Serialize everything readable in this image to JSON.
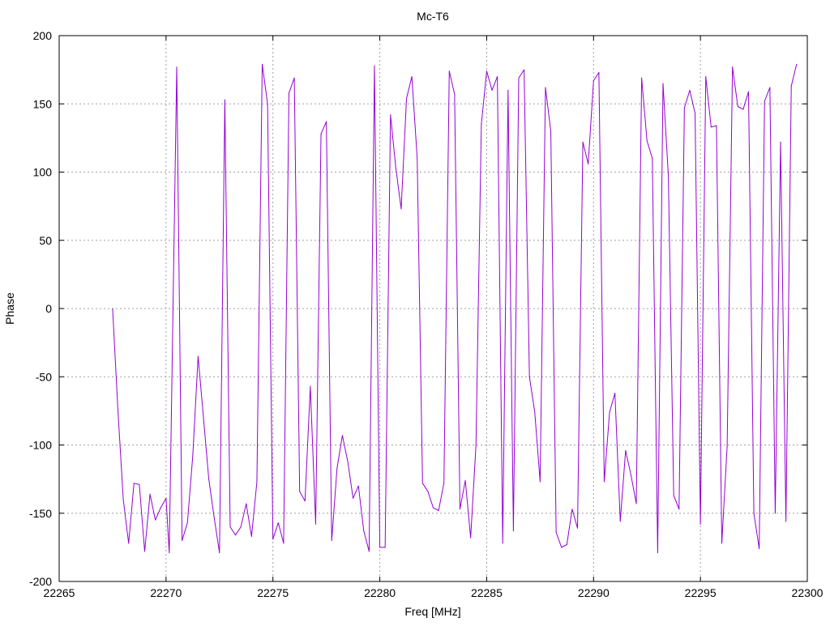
{
  "chart_data": {
    "type": "line",
    "title": "Mc-T6",
    "xlabel": "Freq [MHz]",
    "ylabel": "Phase",
    "xlim": [
      22265,
      22300
    ],
    "ylim": [
      -200,
      200
    ],
    "xticks": [
      22265,
      22270,
      22275,
      22280,
      22285,
      22290,
      22295,
      22300
    ],
    "yticks": [
      -200,
      -150,
      -100,
      -50,
      0,
      50,
      100,
      150,
      200
    ],
    "grid": true,
    "line_color": "#9400d3",
    "series": [
      {
        "x": [
          22267.5,
          22267.75,
          22268.0,
          22268.25,
          22268.5,
          22268.75,
          22269.0,
          22269.25,
          22269.5,
          22269.75,
          22270.0,
          22270.15,
          22270.5,
          22270.75,
          22271.0,
          22271.25,
          22271.5,
          22271.75,
          22272.0,
          22272.25,
          22272.5,
          22272.75,
          22273.0,
          22273.25,
          22273.5,
          22273.75,
          22274.0,
          22274.25,
          22274.5,
          22274.75,
          22275.0,
          22275.25,
          22275.5,
          22275.75,
          22276.0,
          22276.25,
          22276.5,
          22276.75,
          22277.0,
          22277.25,
          22277.5,
          22277.75,
          22278.0,
          22278.25,
          22278.5,
          22278.75,
          22279.0,
          22279.25,
          22279.5,
          22279.75,
          22280.0,
          22280.25,
          22280.5,
          22280.75,
          22281.0,
          22281.25,
          22281.5,
          22281.75,
          22282.0,
          22282.25,
          22282.5,
          22282.75,
          22283.0,
          22283.25,
          22283.5,
          22283.75,
          22284.0,
          22284.25,
          22284.5,
          22284.75,
          22285.0,
          22285.25,
          22285.5,
          22285.75,
          22286.0,
          22286.25,
          22286.5,
          22286.75,
          22287.0,
          22287.25,
          22287.5,
          22287.75,
          22288.0,
          22288.25,
          22288.5,
          22288.75,
          22289.0,
          22289.25,
          22289.5,
          22289.75,
          22290.0,
          22290.25,
          22290.5,
          22290.75,
          22291.0,
          22291.25,
          22291.5,
          22291.75,
          22292.0,
          22292.25,
          22292.5,
          22292.75,
          22293.0,
          22293.25,
          22293.5,
          22293.75,
          22294.0,
          22294.25,
          22294.5,
          22294.75,
          22295.0,
          22295.25,
          22295.5,
          22295.75,
          22296.0,
          22296.25,
          22296.5,
          22296.75,
          22297.0,
          22297.25,
          22297.5,
          22297.75,
          22298.0,
          22298.25,
          22298.5,
          22298.75,
          22299.0,
          22299.25,
          22299.5
        ],
        "y": [
          0,
          -75,
          -140,
          -172,
          -128,
          -129,
          -178,
          -136,
          -155,
          -146,
          -139,
          -179,
          177,
          -170,
          -157,
          -108,
          -35,
          -80,
          -125,
          -153,
          -179,
          153,
          -160,
          -166,
          -160,
          -143,
          -167,
          -127,
          179,
          150,
          -169,
          -157,
          -172,
          158,
          169,
          -134,
          -141,
          -57,
          -158,
          128,
          137,
          -170,
          -117,
          -93,
          -112,
          -139,
          -130,
          -163,
          -178,
          178,
          -175,
          -175,
          142,
          103,
          73,
          154,
          170,
          110,
          -128,
          -134,
          -146,
          -148,
          -128,
          174,
          157,
          -147,
          -126,
          -168,
          -100,
          135,
          174,
          160,
          170,
          -172,
          160,
          -163,
          169,
          175,
          -50,
          -76,
          -127,
          162,
          130,
          -164,
          -175,
          -173,
          -147,
          -161,
          122,
          106,
          167,
          173,
          -127,
          -76,
          -62,
          -156,
          -104,
          -122,
          -143,
          169,
          123,
          110,
          -179,
          165,
          97,
          -137,
          -147,
          147,
          160,
          143,
          -158,
          170,
          133,
          134,
          -172,
          -101,
          177,
          148,
          146,
          159,
          -150,
          -176,
          152,
          162,
          -150,
          122,
          -156,
          163,
          179
        ]
      }
    ]
  }
}
